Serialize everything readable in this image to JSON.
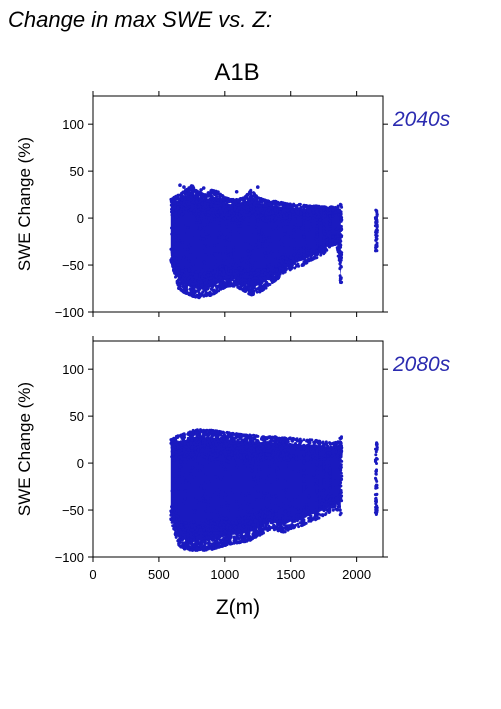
{
  "title": "Change in max SWE vs. Z:",
  "scenario": "A1B",
  "colors": {
    "points": "#1a1ac0",
    "period_label": "#2b2bb0",
    "axes": "#000000"
  },
  "chart_data": [
    {
      "type": "scatter",
      "period": "2040s",
      "ylabel": "SWE Change (%)",
      "xlabel": "",
      "xlim": [
        0,
        2200
      ],
      "ylim": [
        -100,
        130
      ],
      "yticks": [
        -100,
        -50,
        0,
        50,
        100
      ],
      "ytick_labels": [
        "−100",
        "−50",
        "0",
        "50",
        "100"
      ],
      "xticks": [
        0,
        500,
        1000,
        1500,
        2000
      ],
      "xtick_labels": [],
      "grid": false,
      "envelope": {
        "x": [
          590,
          650,
          700,
          750,
          800,
          850,
          900,
          950,
          1000,
          1050,
          1100,
          1150,
          1200,
          1250,
          1300,
          1350,
          1400,
          1450,
          1500,
          1550,
          1600,
          1650,
          1700,
          1750,
          1800,
          1850,
          1880,
          2150
        ],
        "y_min": [
          -45,
          -75,
          -80,
          -83,
          -85,
          -84,
          -82,
          -78,
          -74,
          -72,
          -74,
          -78,
          -82,
          -80,
          -76,
          -70,
          -65,
          -58,
          -55,
          -52,
          -50,
          -45,
          -42,
          -38,
          -30,
          -28,
          -70,
          -35
        ],
        "y_max": [
          20,
          25,
          30,
          35,
          28,
          25,
          30,
          28,
          22,
          20,
          20,
          22,
          30,
          22,
          20,
          18,
          18,
          16,
          15,
          15,
          14,
          13,
          13,
          12,
          12,
          12,
          15,
          10
        ]
      },
      "outliers": [
        {
          "x": 660,
          "y": 35
        },
        {
          "x": 690,
          "y": 33
        },
        {
          "x": 820,
          "y": 30
        },
        {
          "x": 840,
          "y": 32
        },
        {
          "x": 1090,
          "y": 28
        },
        {
          "x": 1250,
          "y": 33
        }
      ]
    },
    {
      "type": "scatter",
      "period": "2080s",
      "ylabel": "SWE Change (%)",
      "xlabel": "Z(m)",
      "xlim": [
        0,
        2200
      ],
      "ylim": [
        -100,
        130
      ],
      "yticks": [
        -100,
        -50,
        0,
        50,
        100
      ],
      "ytick_labels": [
        "−100",
        "−50",
        "0",
        "50",
        "100"
      ],
      "xticks": [
        0,
        500,
        1000,
        1500,
        2000
      ],
      "xtick_labels": [
        "0",
        "500",
        "1000",
        "1500",
        "2000"
      ],
      "grid": false,
      "envelope": {
        "x": [
          590,
          650,
          700,
          750,
          800,
          850,
          900,
          950,
          1000,
          1050,
          1100,
          1150,
          1200,
          1250,
          1300,
          1350,
          1400,
          1450,
          1500,
          1550,
          1600,
          1650,
          1700,
          1750,
          1800,
          1850,
          1880,
          2150
        ],
        "y_min": [
          -60,
          -88,
          -92,
          -93,
          -93,
          -93,
          -92,
          -90,
          -88,
          -86,
          -85,
          -84,
          -82,
          -78,
          -74,
          -70,
          -72,
          -74,
          -70,
          -68,
          -66,
          -62,
          -60,
          -56,
          -52,
          -50,
          -58,
          -55
        ],
        "y_max": [
          25,
          30,
          32,
          35,
          36,
          35,
          35,
          34,
          33,
          32,
          31,
          30,
          30,
          29,
          28,
          28,
          28,
          27,
          27,
          26,
          25,
          25,
          24,
          23,
          22,
          22,
          28,
          22
        ]
      },
      "outliers": []
    }
  ]
}
